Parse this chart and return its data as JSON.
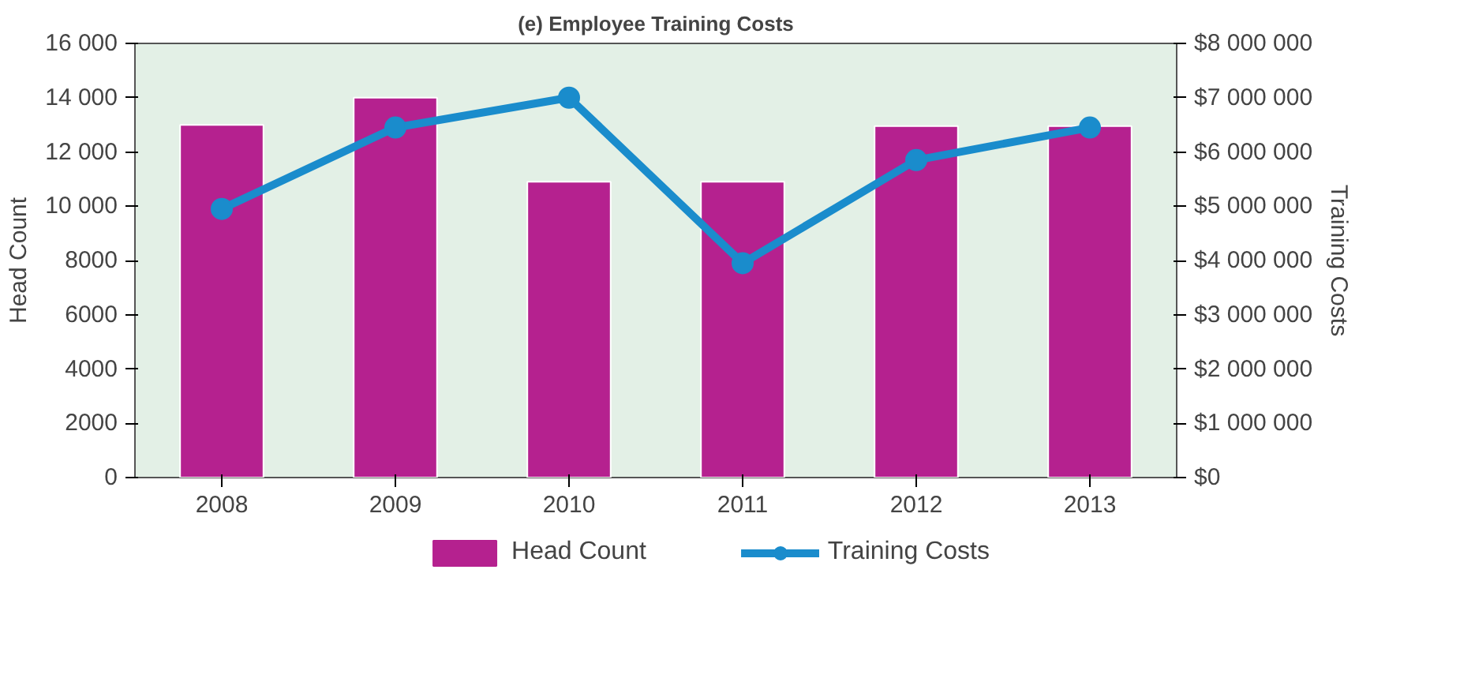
{
  "chart_data": {
    "type": "bar",
    "title": "(e) Employee Training Costs",
    "ylabel": "Head Count",
    "y2label": "Training Costs",
    "categories": [
      "2008",
      "2009",
      "2010",
      "2011",
      "2012",
      "2013"
    ],
    "series": [
      {
        "name": "Head Count",
        "color": "#b5218f",
        "values": [
          13000,
          14000,
          10900,
          10900,
          12950,
          12950
        ]
      },
      {
        "name": "Training Costs",
        "type": "line",
        "axis": "y2",
        "color": "#1a8ccc",
        "values": [
          4950000,
          6450000,
          7000000,
          3950000,
          5850000,
          6450000
        ]
      }
    ],
    "ylim": [
      0,
      16000
    ],
    "yticks": [
      0,
      {
        "value": 2000,
        "label": "2000"
      },
      4000,
      6000,
      8000,
      {
        "value": 10000,
        "label": "10 000"
      },
      {
        "value": 12000,
        "label": "12 000"
      },
      {
        "value": 14000,
        "label": "14 000"
      },
      {
        "value": 16000,
        "label": "16 000"
      }
    ],
    "y2lim": [
      0,
      8000000
    ],
    "y2ticks": [
      {
        "value": 0,
        "label": "$0"
      },
      {
        "value": 1000000,
        "label": "$1 000 000"
      },
      {
        "value": 2000000,
        "label": "$2 000 000"
      },
      {
        "value": 3000000,
        "label": "$3 000 000"
      },
      {
        "value": 4000000,
        "label": "$4 000 000"
      },
      {
        "value": 5000000,
        "label": "$5 000 000"
      },
      {
        "value": 6000000,
        "label": "$6 000 000"
      },
      {
        "value": 7000000,
        "label": "$7 000 000"
      },
      {
        "value": 8000000,
        "label": "$8 000 000"
      }
    ],
    "marker": "circle",
    "legend": "bottom"
  }
}
